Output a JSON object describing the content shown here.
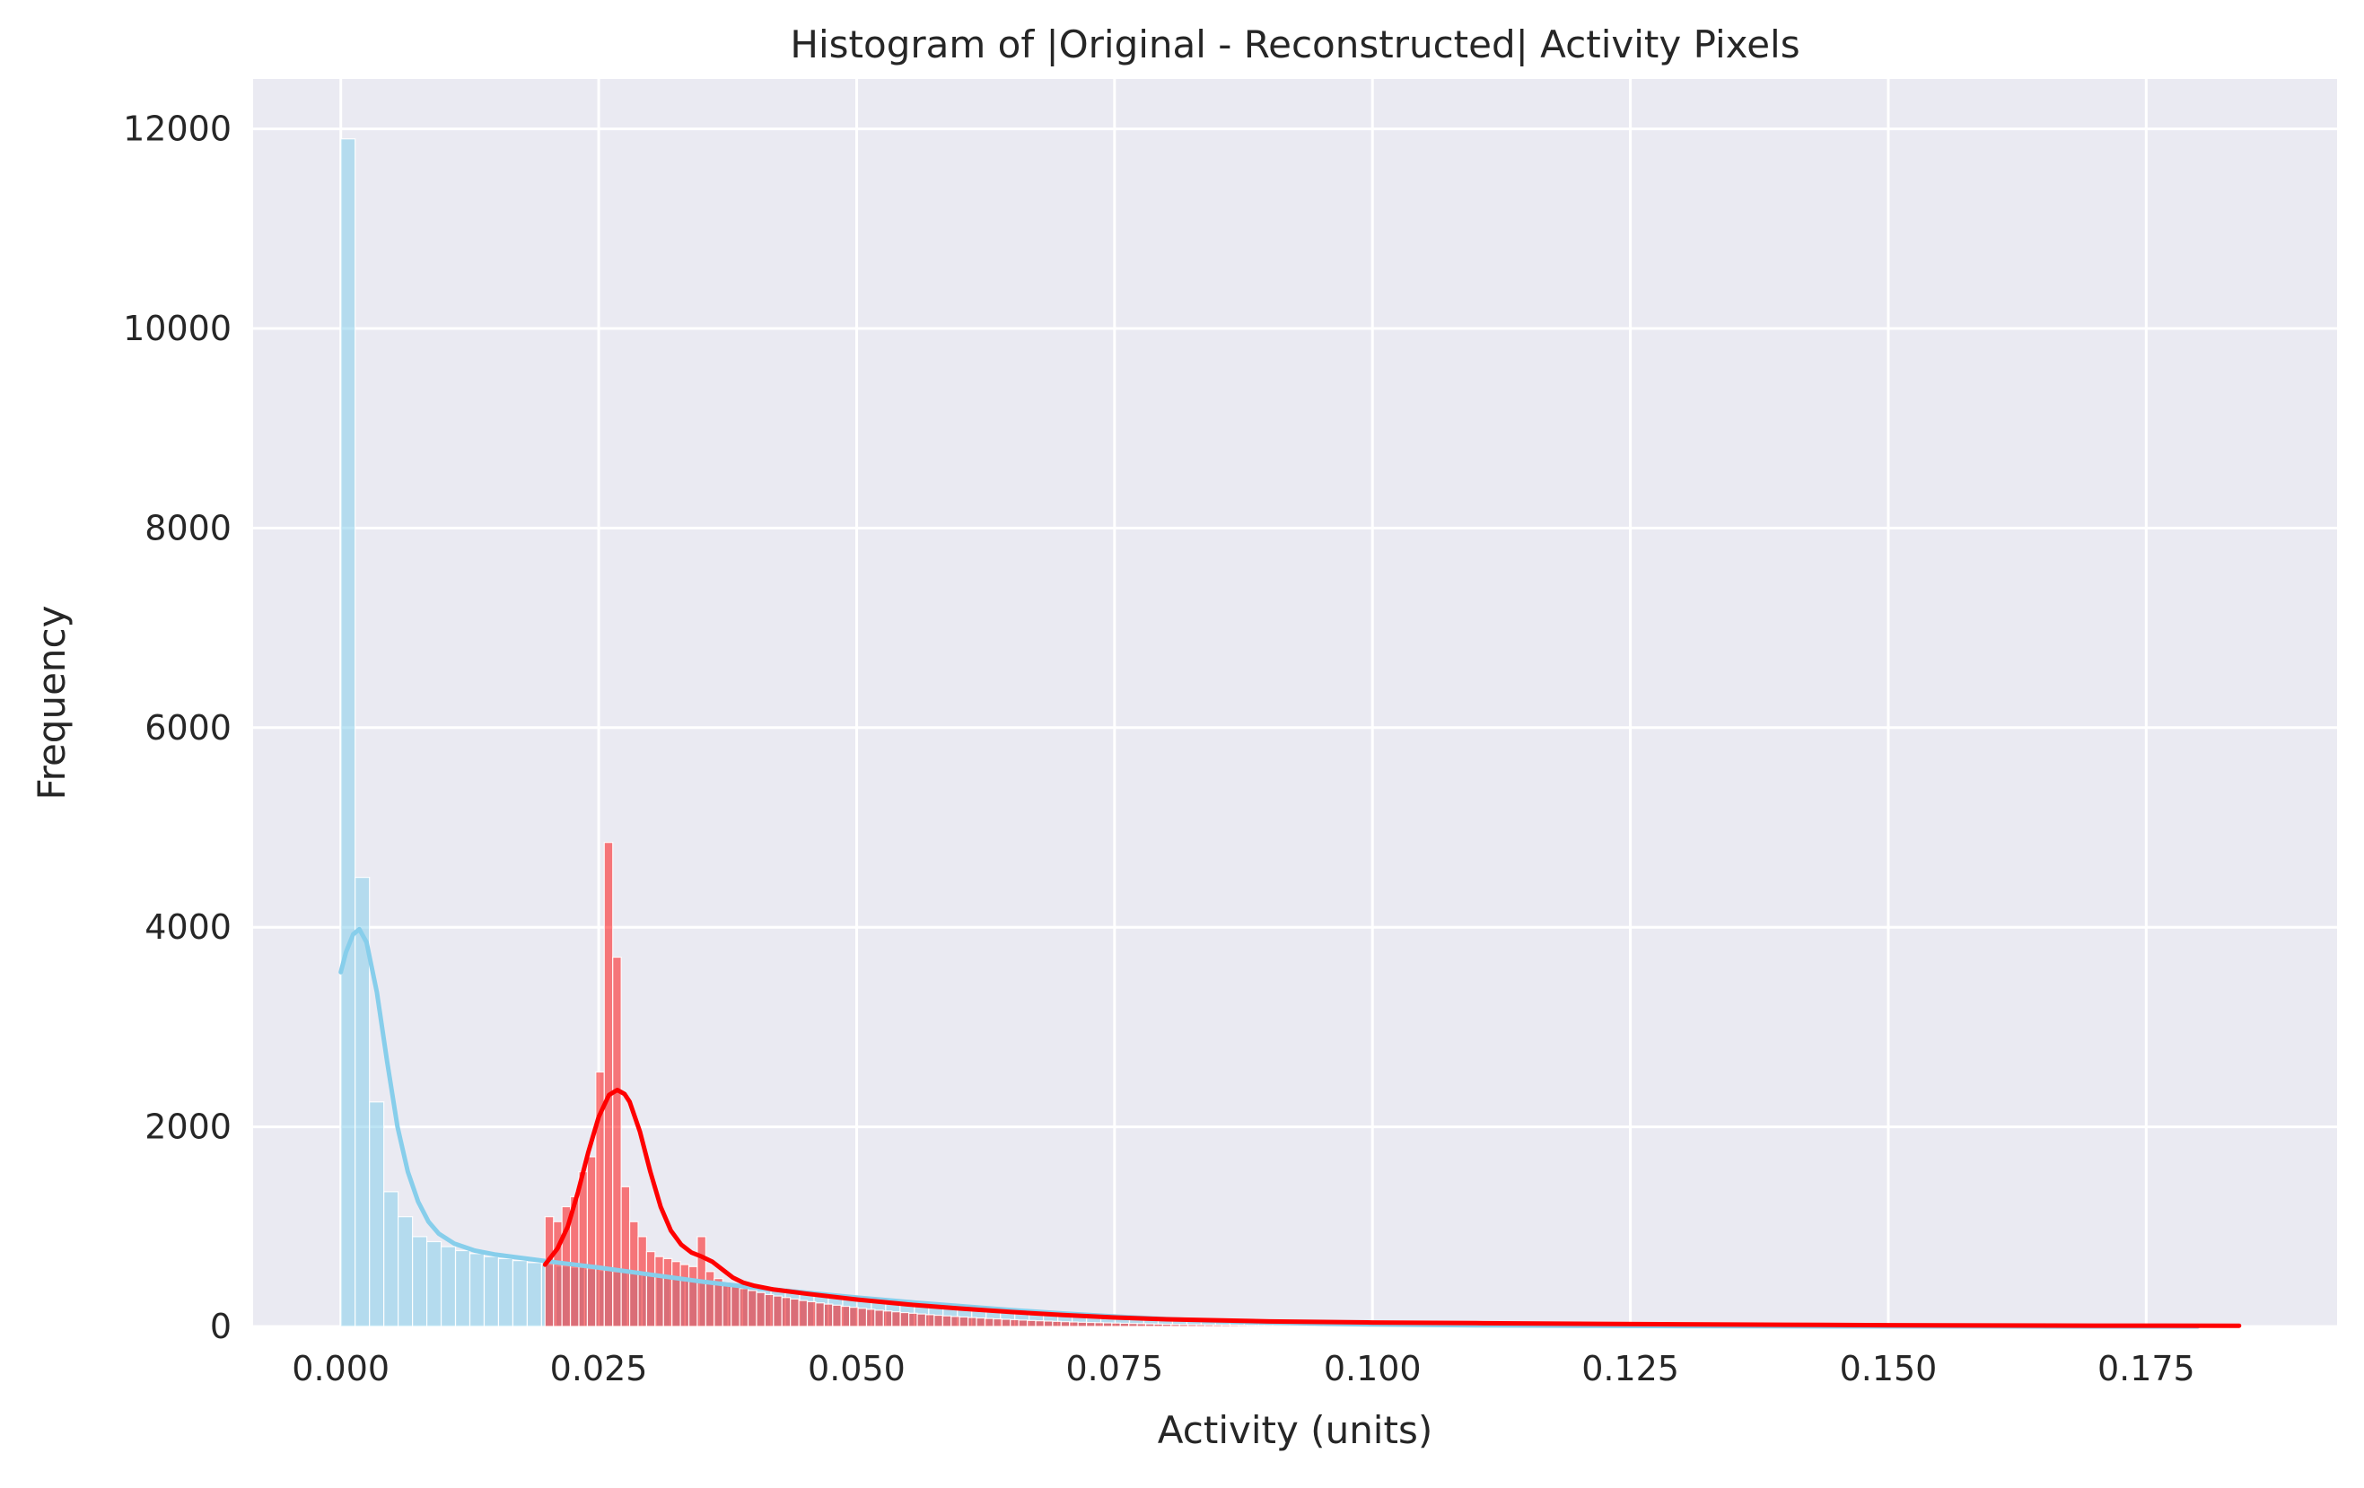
{
  "chart_data": {
    "type": "bar",
    "title": "Histogram of |Original - Reconstructed| Activity Pixels",
    "xlabel": "Activity (units)",
    "ylabel": "Frequency",
    "xlim": [
      -0.0085,
      0.1935
    ],
    "ylim": [
      0,
      12500
    ],
    "x_ticks": [
      0.0,
      0.025,
      0.05,
      0.075,
      0.1,
      0.125,
      0.15,
      0.175
    ],
    "x_tick_labels": [
      "0.000",
      "0.025",
      "0.050",
      "0.075",
      "0.100",
      "0.125",
      "0.150",
      "0.175"
    ],
    "y_ticks": [
      0,
      2000,
      4000,
      6000,
      8000,
      10000,
      12000
    ],
    "y_tick_labels": [
      "0",
      "2000",
      "4000",
      "6000",
      "8000",
      "10000",
      "12000"
    ],
    "grid": true,
    "background": "#eaeaf2",
    "series": [
      {
        "color": "#87ceeb",
        "bar_opacity": 0.55,
        "bin_start": 0.0,
        "bin_width": 0.00139,
        "values": [
          11900,
          4500,
          2250,
          1350,
          1100,
          900,
          850,
          800,
          760,
          730,
          700,
          680,
          660,
          640,
          620,
          605,
          590,
          575,
          560,
          545,
          530,
          515,
          500,
          485,
          470,
          455,
          440,
          425,
          410,
          395,
          380,
          365,
          350,
          335,
          320,
          305,
          290,
          276,
          262,
          248,
          235,
          222,
          210,
          198,
          186,
          175,
          164,
          154,
          144,
          135,
          126,
          117,
          109,
          101,
          93,
          86,
          79,
          72,
          66,
          60,
          54,
          48,
          43,
          38,
          34,
          30,
          26,
          23,
          20,
          18,
          16,
          14,
          12,
          10,
          8,
          6
        ],
        "kde": {
          "x": [
            0.0,
            0.0005,
            0.0012,
            0.0018,
            0.0025,
            0.0035,
            0.0045,
            0.0055,
            0.0065,
            0.0075,
            0.0085,
            0.0095,
            0.011,
            0.013,
            0.015,
            0.018,
            0.021,
            0.025,
            0.03,
            0.035,
            0.04,
            0.045,
            0.05,
            0.055,
            0.06,
            0.065,
            0.07,
            0.075,
            0.08,
            0.085,
            0.09,
            0.095,
            0.1,
            0.11,
            0.12,
            0.13,
            0.14,
            0.15,
            0.16,
            0.17,
            0.18
          ],
          "y": [
            3550,
            3750,
            3930,
            3980,
            3850,
            3350,
            2650,
            2000,
            1550,
            1250,
            1050,
            930,
            830,
            760,
            720,
            680,
            640,
            590,
            520,
            450,
            390,
            340,
            290,
            245,
            205,
            165,
            130,
            100,
            75,
            55,
            40,
            28,
            20,
            12,
            7,
            4,
            2,
            1,
            1,
            0,
            0
          ]
        }
      },
      {
        "color": "#ff0000",
        "bar_opacity": 0.5,
        "bin_start": 0.0198,
        "bin_width": 0.00082,
        "values": [
          1100,
          1050,
          1200,
          1300,
          1550,
          1700,
          2550,
          4850,
          3700,
          1400,
          1050,
          900,
          750,
          700,
          680,
          650,
          620,
          600,
          900,
          550,
          480,
          430,
          400,
          380,
          360,
          340,
          320,
          305,
          290,
          275,
          260,
          248,
          236,
          224,
          213,
          202,
          192,
          182,
          172,
          163,
          155,
          147,
          139,
          132,
          125,
          118,
          112,
          106,
          100,
          95,
          90,
          85,
          80,
          76,
          72,
          68,
          64,
          60,
          57,
          54,
          51,
          48,
          45,
          42,
          40,
          38,
          36,
          34,
          32,
          30,
          28,
          26,
          24,
          22,
          20,
          19,
          18,
          17,
          16,
          15,
          14,
          13,
          12,
          11,
          10,
          10,
          9,
          9,
          8,
          8,
          7,
          7,
          6,
          6,
          6,
          5,
          5,
          5,
          5,
          4,
          4,
          4,
          4,
          4,
          3,
          3,
          3,
          3,
          3,
          3,
          3,
          2,
          2,
          2,
          2,
          2,
          2,
          2,
          2,
          2,
          2,
          2,
          2,
          2,
          2,
          2,
          2,
          2,
          2,
          2,
          2,
          2,
          2,
          2,
          2,
          2,
          2,
          2,
          2,
          2,
          2,
          2,
          2,
          2,
          2,
          2,
          2,
          2,
          2,
          2,
          2,
          2,
          2,
          2,
          2,
          2,
          2,
          2,
          2,
          2,
          2,
          2,
          2,
          2,
          2,
          2,
          2,
          2,
          2,
          2,
          2,
          2,
          2,
          2,
          2,
          2,
          2,
          2,
          2,
          2,
          2,
          2,
          2,
          2,
          2,
          2,
          2,
          2
        ],
        "kde": {
          "x": [
            0.0198,
            0.021,
            0.022,
            0.023,
            0.024,
            0.025,
            0.026,
            0.0268,
            0.0275,
            0.028,
            0.029,
            0.03,
            0.031,
            0.032,
            0.033,
            0.034,
            0.035,
            0.036,
            0.037,
            0.038,
            0.039,
            0.04,
            0.042,
            0.045,
            0.05,
            0.055,
            0.06,
            0.065,
            0.07,
            0.075,
            0.08,
            0.09,
            0.1,
            0.11,
            0.12,
            0.13,
            0.14,
            0.15,
            0.16,
            0.17,
            0.184
          ],
          "y": [
            620,
            780,
            1000,
            1350,
            1750,
            2100,
            2320,
            2370,
            2330,
            2250,
            1950,
            1550,
            1200,
            960,
            820,
            740,
            700,
            650,
            570,
            490,
            440,
            410,
            370,
            330,
            270,
            220,
            180,
            145,
            115,
            90,
            72,
            50,
            40,
            33,
            27,
            22,
            17,
            13,
            10,
            8,
            7
          ]
        }
      }
    ]
  }
}
